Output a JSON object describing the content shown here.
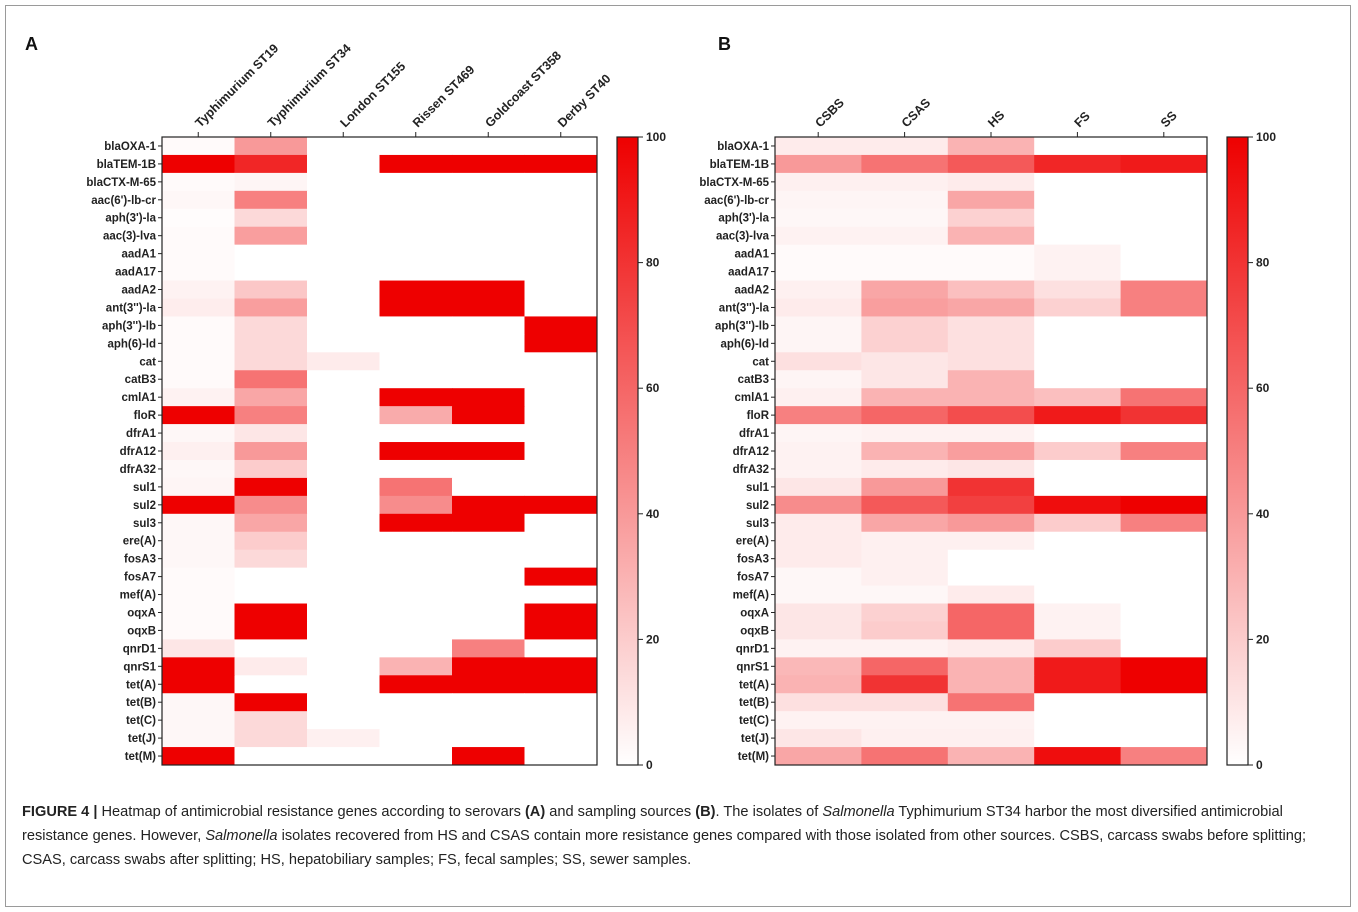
{
  "chart_data": [
    {
      "type": "heatmap",
      "panel_label": "A",
      "columns": [
        "Typhimurium ST19",
        "Typhimurium ST34",
        "London ST155",
        "Rissen ST469",
        "Goldcoast ST358",
        "Derby ST40"
      ],
      "rows": [
        "blaOXA-1",
        "blaTEM-1B",
        "blaCTX-M-65",
        "aac(6')-lb-cr",
        "aph(3')-la",
        "aac(3)-lva",
        "aadA1",
        "aadA17",
        "aadA2",
        "ant(3'')-la",
        "aph(3'')-lb",
        "aph(6)-ld",
        "cat",
        "catB3",
        "cmlA1",
        "floR",
        "dfrA1",
        "dfrA12",
        "dfrA32",
        "sul1",
        "sul2",
        "sul3",
        "ere(A)",
        "fosA3",
        "fosA7",
        "mef(A)",
        "oqxA",
        "oqxB",
        "qnrD1",
        "qnrS1",
        "tet(A)",
        "tet(B)",
        "tet(C)",
        "tet(J)",
        "tet(M)"
      ],
      "values": [
        [
          2,
          40,
          0,
          0,
          0,
          0
        ],
        [
          100,
          85,
          0,
          100,
          100,
          100
        ],
        [
          2,
          4,
          0,
          0,
          0,
          0
        ],
        [
          3,
          50,
          0,
          0,
          0,
          0
        ],
        [
          1,
          15,
          0,
          0,
          0,
          0
        ],
        [
          2,
          38,
          0,
          0,
          0,
          0
        ],
        [
          2,
          0,
          0,
          0,
          0,
          0
        ],
        [
          2,
          0,
          0,
          0,
          0,
          0
        ],
        [
          5,
          22,
          0,
          100,
          100,
          0
        ],
        [
          7,
          38,
          0,
          100,
          100,
          0
        ],
        [
          2,
          15,
          0,
          0,
          0,
          100
        ],
        [
          2,
          15,
          0,
          0,
          0,
          100
        ],
        [
          2,
          15,
          8,
          0,
          0,
          0
        ],
        [
          2,
          55,
          0,
          0,
          0,
          0
        ],
        [
          5,
          35,
          0,
          100,
          100,
          0
        ],
        [
          100,
          50,
          0,
          33,
          100,
          0
        ],
        [
          3,
          10,
          0,
          0,
          0,
          0
        ],
        [
          6,
          40,
          0,
          100,
          100,
          0
        ],
        [
          3,
          20,
          0,
          0,
          0,
          0
        ],
        [
          4,
          100,
          0,
          55,
          0,
          0
        ],
        [
          100,
          45,
          0,
          45,
          100,
          100
        ],
        [
          3,
          35,
          0,
          100,
          100,
          0
        ],
        [
          3,
          20,
          0,
          0,
          0,
          0
        ],
        [
          3,
          15,
          0,
          0,
          0,
          0
        ],
        [
          2,
          0,
          0,
          0,
          0,
          100
        ],
        [
          2,
          0,
          0,
          0,
          0,
          0
        ],
        [
          2,
          100,
          0,
          0,
          0,
          100
        ],
        [
          2,
          100,
          0,
          0,
          0,
          100
        ],
        [
          10,
          0,
          0,
          0,
          50,
          0
        ],
        [
          100,
          8,
          0,
          30,
          100,
          100
        ],
        [
          100,
          0,
          0,
          100,
          100,
          100
        ],
        [
          3,
          100,
          0,
          0,
          0,
          0
        ],
        [
          3,
          15,
          0,
          0,
          0,
          0
        ],
        [
          3,
          15,
          6,
          0,
          0,
          0
        ],
        [
          100,
          0,
          0,
          0,
          100,
          0
        ]
      ],
      "colorbar": {
        "min": 0,
        "max": 100,
        "ticks": [
          0,
          20,
          40,
          60,
          80,
          100
        ],
        "low_color": "#ffffff",
        "high_color": "#ee0000"
      }
    },
    {
      "type": "heatmap",
      "panel_label": "B",
      "columns": [
        "CSBS",
        "CSAS",
        "HS",
        "FS",
        "SS"
      ],
      "rows": [
        "blaOXA-1",
        "blaTEM-1B",
        "blaCTX-M-65",
        "aac(6')-lb-cr",
        "aph(3')-la",
        "aac(3)-lva",
        "aadA1",
        "aadA17",
        "aadA2",
        "ant(3'')-la",
        "aph(3'')-lb",
        "aph(6)-ld",
        "cat",
        "catB3",
        "cmlA1",
        "floR",
        "dfrA1",
        "dfrA12",
        "dfrA32",
        "sul1",
        "sul2",
        "sul3",
        "ere(A)",
        "fosA3",
        "fosA7",
        "mef(A)",
        "oqxA",
        "oqxB",
        "qnrD1",
        "qnrS1",
        "tet(A)",
        "tet(B)",
        "tet(C)",
        "tet(J)",
        "tet(M)"
      ],
      "values": [
        [
          8,
          8,
          30,
          0,
          0
        ],
        [
          40,
          55,
          65,
          85,
          90
        ],
        [
          6,
          6,
          8,
          0,
          0
        ],
        [
          4,
          4,
          35,
          0,
          0
        ],
        [
          3,
          3,
          18,
          0,
          0
        ],
        [
          5,
          5,
          30,
          0,
          0
        ],
        [
          2,
          2,
          2,
          5,
          0
        ],
        [
          2,
          2,
          2,
          5,
          0
        ],
        [
          6,
          35,
          25,
          12,
          50
        ],
        [
          8,
          38,
          35,
          18,
          50
        ],
        [
          4,
          18,
          12,
          0,
          0
        ],
        [
          4,
          18,
          12,
          0,
          0
        ],
        [
          12,
          10,
          12,
          0,
          0
        ],
        [
          4,
          10,
          30,
          0,
          0
        ],
        [
          6,
          30,
          30,
          25,
          55
        ],
        [
          50,
          60,
          70,
          90,
          80
        ],
        [
          4,
          5,
          5,
          0,
          0
        ],
        [
          5,
          30,
          38,
          20,
          50
        ],
        [
          5,
          8,
          10,
          0,
          0
        ],
        [
          10,
          40,
          80,
          0,
          0
        ],
        [
          45,
          65,
          75,
          95,
          100
        ],
        [
          8,
          35,
          40,
          20,
          50
        ],
        [
          8,
          6,
          6,
          0,
          0
        ],
        [
          8,
          6,
          0,
          0,
          0
        ],
        [
          3,
          6,
          0,
          0,
          0
        ],
        [
          3,
          3,
          8,
          0,
          0
        ],
        [
          10,
          18,
          60,
          5,
          0
        ],
        [
          10,
          20,
          60,
          5,
          0
        ],
        [
          5,
          5,
          8,
          20,
          0
        ],
        [
          28,
          60,
          30,
          90,
          100
        ],
        [
          30,
          80,
          30,
          90,
          100
        ],
        [
          12,
          12,
          55,
          0,
          0
        ],
        [
          5,
          5,
          5,
          0,
          0
        ],
        [
          10,
          6,
          6,
          0,
          0
        ],
        [
          35,
          55,
          30,
          95,
          50
        ]
      ],
      "colorbar": {
        "min": 0,
        "max": 100,
        "ticks": [
          0,
          20,
          40,
          60,
          80,
          100
        ],
        "low_color": "#ffffff",
        "high_color": "#ee0000"
      }
    }
  ],
  "caption": {
    "figure_label": "FIGURE 4 |",
    "parts": [
      {
        "t": " Heatmap of antimicrobial resistance genes according to serovars ",
        "s": "n"
      },
      {
        "t": "(A)",
        "s": "b"
      },
      {
        "t": " and sampling sources ",
        "s": "n"
      },
      {
        "t": "(B)",
        "s": "b"
      },
      {
        "t": ". The isolates of ",
        "s": "n"
      },
      {
        "t": "Salmonella",
        "s": "i"
      },
      {
        "t": " Typhimurium ST34 harbor the most diversified antimicrobial resistance genes. However, ",
        "s": "n"
      },
      {
        "t": "Salmonella",
        "s": "i"
      },
      {
        "t": " isolates recovered from HS and CSAS contain more resistance genes compared with those isolated from other sources. CSBS, carcass swabs before splitting; CSAS, carcass swabs after splitting; HS, hepatobiliary samples; FS, fecal samples; SS, sewer samples.",
        "s": "n"
      }
    ]
  }
}
